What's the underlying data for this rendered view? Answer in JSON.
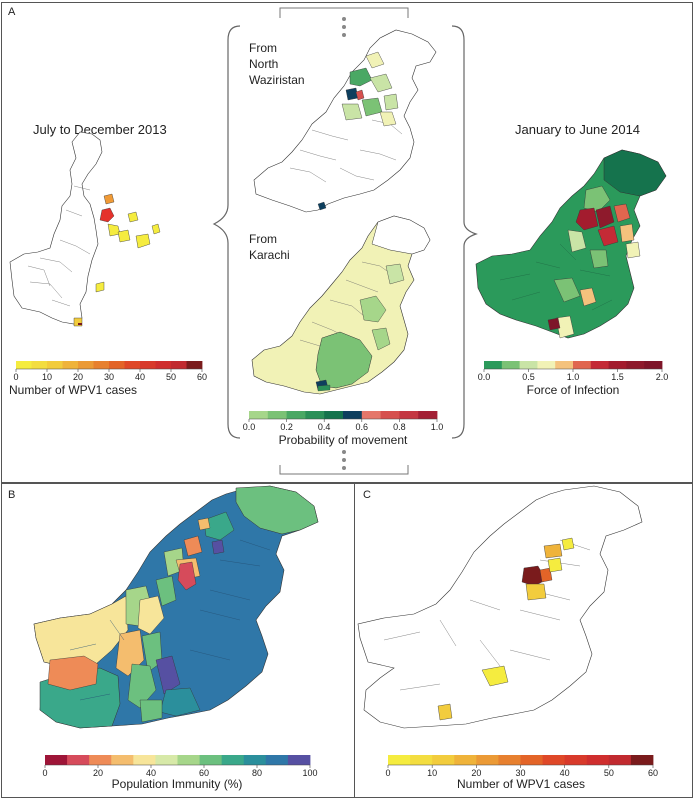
{
  "panel_a": {
    "label": "A",
    "left_map_title": "July to December 2013",
    "from_north": "From\nNorth\nWaziristan",
    "from_karachi": "From\nKarachi",
    "right_map_title": "January to June 2014",
    "legend_cases": {
      "title": "Number of WPV1 cases",
      "ticks": [
        "0",
        "10",
        "20",
        "30",
        "40",
        "50",
        "60"
      ],
      "colors": [
        "#f5ec3f",
        "#f3dd40",
        "#f2cc3d",
        "#efb33a",
        "#eb9a36",
        "#e7802f",
        "#e36428",
        "#df4828",
        "#d83a2b",
        "#cf2e2e",
        "#c12a2f",
        "#7a1b1c"
      ]
    },
    "legend_movement": {
      "title": "Probability of movement",
      "ticks": [
        "0.0",
        "0.2",
        "0.4",
        "0.6",
        "0.8",
        "1.0"
      ],
      "colors": [
        "#a6d68a",
        "#7bc275",
        "#4aa864",
        "#2b9058",
        "#15734d",
        "#0e3f5e",
        "#e5776a",
        "#d6504e",
        "#c43742",
        "#a32035"
      ]
    },
    "legend_foi": {
      "title": "Force of Infection",
      "ticks": [
        "0.0",
        "0.5",
        "1.0",
        "1.5",
        "2.0"
      ],
      "colors": [
        "#2b9a5b",
        "#7bc275",
        "#c9e4a6",
        "#f1f2b6",
        "#f4c27d",
        "#e0664f",
        "#c42a36",
        "#a31c2e",
        "#8e1a2c",
        "#7e1529"
      ]
    }
  },
  "panel_b": {
    "label": "B",
    "legend": {
      "title": "Population Immunity (%)",
      "ticks": [
        "0",
        "20",
        "40",
        "60",
        "80",
        "100"
      ],
      "colors": [
        "#9e1538",
        "#d64b5b",
        "#ee8b57",
        "#f4bd6e",
        "#f7e59a",
        "#d7e9a8",
        "#a6d68a",
        "#6cc07f",
        "#3aa88a",
        "#2b8f9c",
        "#2f77a8",
        "#5650a2"
      ]
    }
  },
  "panel_c": {
    "label": "C",
    "legend": {
      "title": "Number of WPV1 cases",
      "ticks": [
        "0",
        "10",
        "20",
        "30",
        "40",
        "50",
        "60"
      ],
      "colors": [
        "#f5ec3f",
        "#f3dd40",
        "#f2cc3d",
        "#efb33a",
        "#eb9a36",
        "#e7802f",
        "#e36428",
        "#df4828",
        "#d83a2b",
        "#cf2e2e",
        "#c12a2f",
        "#7a1b1c"
      ]
    }
  }
}
